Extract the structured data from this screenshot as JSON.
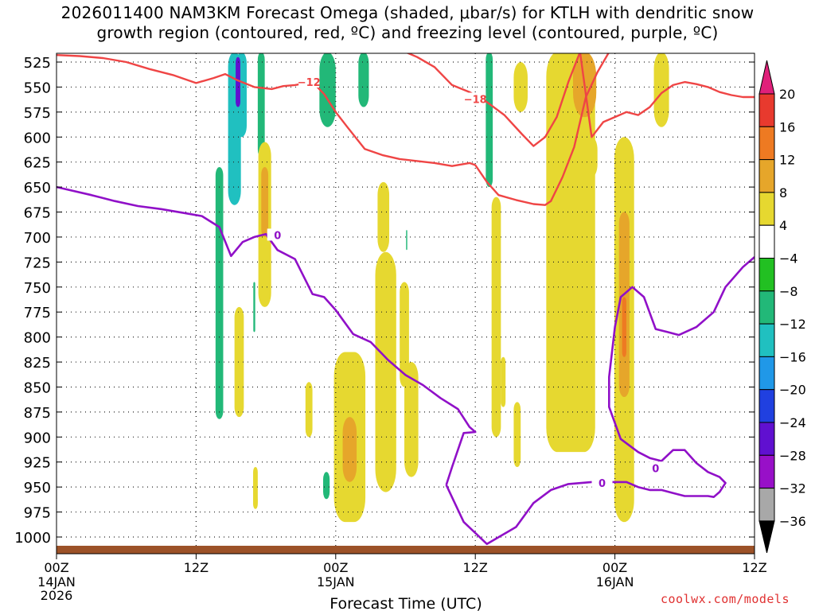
{
  "chart_data": {
    "type": "heatmap",
    "title_line1": "2026011400 NAM3KM Forecast Omega (shaded, μbar/s) for KTLH with dendritic snow",
    "title_line2": "growth region (contoured, red, ºC) and freezing level (contoured, purple, ºC)",
    "xlabel": "Forecast Time (UTC)",
    "x_range": [
      0,
      60
    ],
    "x_ticks": [
      {
        "hour": 0,
        "label1": "00Z",
        "label2": "14JAN",
        "label3": "2026"
      },
      {
        "hour": 12,
        "label1": "12Z",
        "label2": "",
        "label3": ""
      },
      {
        "hour": 24,
        "label1": "00Z",
        "label2": "15JAN",
        "label3": ""
      },
      {
        "hour": 36,
        "label1": "12Z",
        "label2": "",
        "label3": ""
      },
      {
        "hour": 48,
        "label1": "00Z",
        "label2": "16JAN",
        "label3": ""
      },
      {
        "hour": 60,
        "label1": "12Z",
        "label2": "",
        "label3": ""
      }
    ],
    "y_range": [
      1025,
      515
    ],
    "y_ticks": [
      525,
      550,
      575,
      600,
      625,
      650,
      675,
      700,
      725,
      750,
      775,
      800,
      825,
      850,
      875,
      900,
      925,
      950,
      975,
      1000
    ],
    "grid": true,
    "colorbar": {
      "labels": [
        "20",
        "16",
        "12",
        "8",
        "4",
        "−4",
        "−8",
        "−12",
        "−16",
        "−20",
        "−24",
        "−28",
        "−32",
        "−36"
      ],
      "bins": [
        "#e0207a",
        "#e83a2e",
        "#ee7a22",
        "#e6a62a",
        "#e6d830",
        "#ffffff",
        "#22c022",
        "#22b878",
        "#20c0c0",
        "#2098e8",
        "#2040e0",
        "#6010d0",
        "#9810c8",
        "#a8a8a8",
        "#000000"
      ]
    },
    "contour_labels": {
      "dgz_cold": "−12",
      "dgz_warm": "−18",
      "freezing": "0"
    },
    "freezing_level": {
      "name": "freezing level (0 ºC)",
      "color": "#9010c8",
      "hours": [
        0,
        3,
        5,
        7,
        9,
        11,
        12.5,
        14,
        15,
        16,
        17,
        18,
        19,
        20.5,
        22,
        23,
        24,
        25.5,
        27,
        28.5,
        30,
        31.5,
        33,
        34.5,
        35.5,
        36,
        35,
        34,
        33.5
      ],
      "pressures": [
        650,
        658,
        664,
        669,
        672,
        676,
        679,
        690,
        719,
        705,
        700,
        697,
        713,
        722,
        757,
        760,
        773,
        797,
        805,
        823,
        838,
        848,
        861,
        872,
        890,
        895,
        896,
        930,
        948
      ]
    },
    "freezing_level_2": {
      "hours": [
        33.5,
        35,
        37,
        39.5,
        41,
        42.5,
        44,
        46,
        48,
        49,
        50,
        51,
        52,
        53,
        54,
        55,
        56,
        56.5,
        57,
        57.5,
        57,
        56,
        55,
        54,
        53,
        52,
        51,
        50,
        48.5,
        47.5,
        47.5,
        48,
        48.5,
        49.5,
        50.5,
        51.5,
        52.5,
        53.5,
        55,
        56.5,
        57.5,
        59,
        60
      ],
      "pressures": [
        948,
        985,
        1007,
        990,
        966,
        953,
        947,
        945,
        945,
        945,
        950,
        953,
        953,
        956,
        959,
        959,
        959,
        960,
        955,
        946,
        940,
        935,
        926,
        913,
        913,
        924,
        921,
        915,
        902,
        870,
        840,
        790,
        760,
        750,
        760,
        792,
        795,
        798,
        790,
        775,
        750,
        730,
        720
      ]
    },
    "dgz_cold_line": {
      "name": "−12 ºC",
      "color": "#ef4545",
      "hours": [
        0,
        2,
        4,
        6,
        8,
        10,
        12,
        13.5,
        14.5,
        15.5,
        17,
        18.5,
        19.5,
        20.5,
        22,
        23,
        24,
        25,
        26.5,
        28,
        29.5,
        31,
        32.5,
        34,
        35.5,
        36,
        37,
        38,
        39.5,
        41,
        42,
        42.5,
        43.5,
        44.5,
        45.5,
        46.5,
        47.5,
        48.5,
        49.5,
        50.5,
        51.5,
        53,
        54.5,
        56,
        57.5,
        59,
        60
      ],
      "pressures": [
        518,
        519,
        521,
        525,
        532,
        538,
        546,
        541,
        537,
        543,
        550,
        552,
        549,
        548,
        545,
        557,
        575,
        590,
        612,
        618,
        622,
        624,
        626,
        629,
        626,
        628,
        645,
        658,
        663,
        667,
        668,
        664,
        640,
        610,
        560,
        535,
        515,
        515,
        515,
        515,
        515,
        515,
        515,
        515,
        515,
        515,
        515
      ]
    },
    "dgz_warm_line": {
      "name": "−18 ºC",
      "color": "#ef4545",
      "hours": [
        30,
        31,
        32.5,
        34,
        35.5,
        37,
        38.5,
        40,
        41,
        42,
        43,
        44,
        45,
        46,
        47,
        48,
        49,
        50,
        51,
        52,
        53,
        54,
        55,
        56,
        57,
        58,
        59,
        60
      ],
      "pressures": [
        515,
        520,
        530,
        548,
        555,
        565,
        578,
        597,
        609,
        600,
        580,
        545,
        515,
        600,
        585,
        580,
        575,
        578,
        570,
        556,
        548,
        545,
        547,
        550,
        555,
        558,
        560,
        560
      ]
    },
    "omega_cells": [
      {
        "hour": 15.3,
        "p_top": 515,
        "p_bot": 668,
        "half_width": 0.55,
        "value": -12
      },
      {
        "hour": 15.9,
        "p_top": 515,
        "p_bot": 600,
        "half_width": 0.45,
        "value": -14
      },
      {
        "hour": 15.6,
        "p_top": 520,
        "p_bot": 570,
        "half_width": 0.2,
        "value": -26
      },
      {
        "hour": 17.6,
        "p_top": 515,
        "p_bot": 620,
        "half_width": 0.3,
        "value": -10
      },
      {
        "hour": 14.0,
        "p_top": 630,
        "p_bot": 882,
        "half_width": 0.33,
        "value": -8
      },
      {
        "hour": 17.0,
        "p_top": 745,
        "p_bot": 795,
        "half_width": 0.08,
        "value": -8
      },
      {
        "hour": 23.3,
        "p_top": 515,
        "p_bot": 590,
        "half_width": 0.7,
        "value": -8
      },
      {
        "hour": 26.4,
        "p_top": 515,
        "p_bot": 570,
        "half_width": 0.45,
        "value": -8
      },
      {
        "hour": 37.2,
        "p_top": 515,
        "p_bot": 650,
        "half_width": 0.3,
        "value": -8
      },
      {
        "hour": 30.1,
        "p_top": 693,
        "p_bot": 713,
        "half_width": 0.05,
        "value": -8
      },
      {
        "hour": 23.2,
        "p_top": 935,
        "p_bot": 962,
        "half_width": 0.28,
        "value": -8
      },
      {
        "hour": 17.9,
        "p_top": 605,
        "p_bot": 770,
        "half_width": 0.55,
        "value": 5
      },
      {
        "hour": 17.9,
        "p_top": 630,
        "p_bot": 700,
        "half_width": 0.3,
        "value": 9
      },
      {
        "hour": 15.7,
        "p_top": 770,
        "p_bot": 880,
        "half_width": 0.4,
        "value": 5
      },
      {
        "hour": 17.1,
        "p_top": 930,
        "p_bot": 970,
        "half_width": 0.2,
        "value": 5
      },
      {
        "hour": 17.1,
        "p_top": 958,
        "p_bot": 972,
        "half_width": 0.2,
        "value": 5
      },
      {
        "hour": 28.1,
        "p_top": 645,
        "p_bot": 715,
        "half_width": 0.5,
        "value": 5
      },
      {
        "hour": 28.3,
        "p_top": 715,
        "p_bot": 955,
        "half_width": 0.9,
        "value": 5
      },
      {
        "hour": 29.9,
        "p_top": 745,
        "p_bot": 850,
        "half_width": 0.4,
        "value": 5
      },
      {
        "hour": 30.5,
        "p_top": 825,
        "p_bot": 940,
        "half_width": 0.6,
        "value": 5
      },
      {
        "hour": 25.2,
        "p_top": 815,
        "p_bot": 985,
        "half_width": 1.35,
        "value": 5
      },
      {
        "hour": 25.2,
        "p_top": 880,
        "p_bot": 945,
        "half_width": 0.6,
        "value": 9
      },
      {
        "hour": 21.7,
        "p_top": 845,
        "p_bot": 900,
        "half_width": 0.3,
        "value": 5
      },
      {
        "hour": 39.9,
        "p_top": 525,
        "p_bot": 575,
        "half_width": 0.6,
        "value": 5
      },
      {
        "hour": 37.8,
        "p_top": 660,
        "p_bot": 900,
        "half_width": 0.4,
        "value": 5
      },
      {
        "hour": 39.6,
        "p_top": 865,
        "p_bot": 930,
        "half_width": 0.3,
        "value": 5
      },
      {
        "hour": 38.4,
        "p_top": 820,
        "p_bot": 870,
        "half_width": 0.2,
        "value": 5
      },
      {
        "hour": 44.2,
        "p_top": 515,
        "p_bot": 915,
        "half_width": 2.1,
        "value": 5
      },
      {
        "hour": 45.4,
        "p_top": 515,
        "p_bot": 580,
        "half_width": 1.0,
        "value": 9
      },
      {
        "hour": 48.8,
        "p_top": 600,
        "p_bot": 985,
        "half_width": 0.85,
        "value": 5
      },
      {
        "hour": 48.8,
        "p_top": 675,
        "p_bot": 860,
        "half_width": 0.45,
        "value": 9
      },
      {
        "hour": 48.8,
        "p_top": 760,
        "p_bot": 820,
        "half_width": 0.18,
        "value": 13
      },
      {
        "hour": 52.0,
        "p_top": 515,
        "p_bot": 590,
        "half_width": 0.65,
        "value": 5
      },
      {
        "hour": 46.0,
        "p_top": 600,
        "p_bot": 640,
        "half_width": 0.5,
        "value": 5
      }
    ]
  },
  "footer": "coolwx.com/models"
}
